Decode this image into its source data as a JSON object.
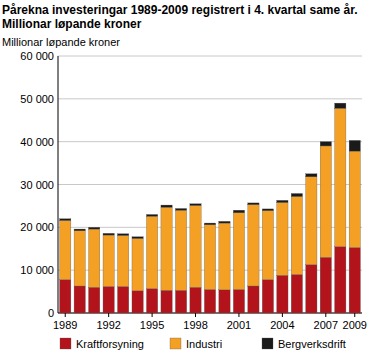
{
  "chart_data": {
    "type": "bar",
    "stacked": true,
    "grid": true,
    "legend": "bottom",
    "title": "Pårekna investeringar 1989-2009 registrert i 4. kvartal same år. Millionar løpande kroner",
    "y_label": "Millionar løpande kroner",
    "categories": [
      "1989",
      null,
      null,
      "1992",
      null,
      null,
      "1995",
      null,
      null,
      "1998",
      null,
      null,
      "2001",
      null,
      null,
      "2004",
      null,
      null,
      "2007",
      null,
      "2009"
    ],
    "ylim": [
      0,
      60000
    ],
    "yticks": [
      0,
      {
        "value": 10000,
        "label": "10 000"
      },
      {
        "value": 20000,
        "label": "20 000"
      },
      {
        "value": 30000,
        "label": "30 000"
      },
      {
        "value": 40000,
        "label": "40 000"
      },
      {
        "value": 50000,
        "label": "50 000"
      },
      {
        "value": 60000,
        "label": "60 000"
      }
    ],
    "series": [
      {
        "name": "Kraftforsyning",
        "color": "#b3141c",
        "values": [
          7800,
          6300,
          6000,
          6200,
          6200,
          5200,
          5700,
          5300,
          5300,
          6000,
          5500,
          5400,
          5500,
          6300,
          7800,
          8800,
          9000,
          11300,
          13000,
          15500,
          15300
        ]
      },
      {
        "name": "Industri",
        "color": "#f4a024",
        "values": [
          13800,
          12900,
          13600,
          12000,
          11900,
          12200,
          16900,
          19400,
          18700,
          19100,
          15100,
          15600,
          17900,
          19000,
          16100,
          17000,
          18200,
          20500,
          26000,
          32300,
          22500
        ]
      },
      {
        "name": "Bergverksdrift",
        "color": "#1a1a1a",
        "values": [
          400,
          400,
          400,
          400,
          400,
          400,
          400,
          500,
          400,
          400,
          400,
          400,
          600,
          400,
          400,
          500,
          700,
          700,
          1000,
          1200,
          2500
        ]
      }
    ]
  }
}
